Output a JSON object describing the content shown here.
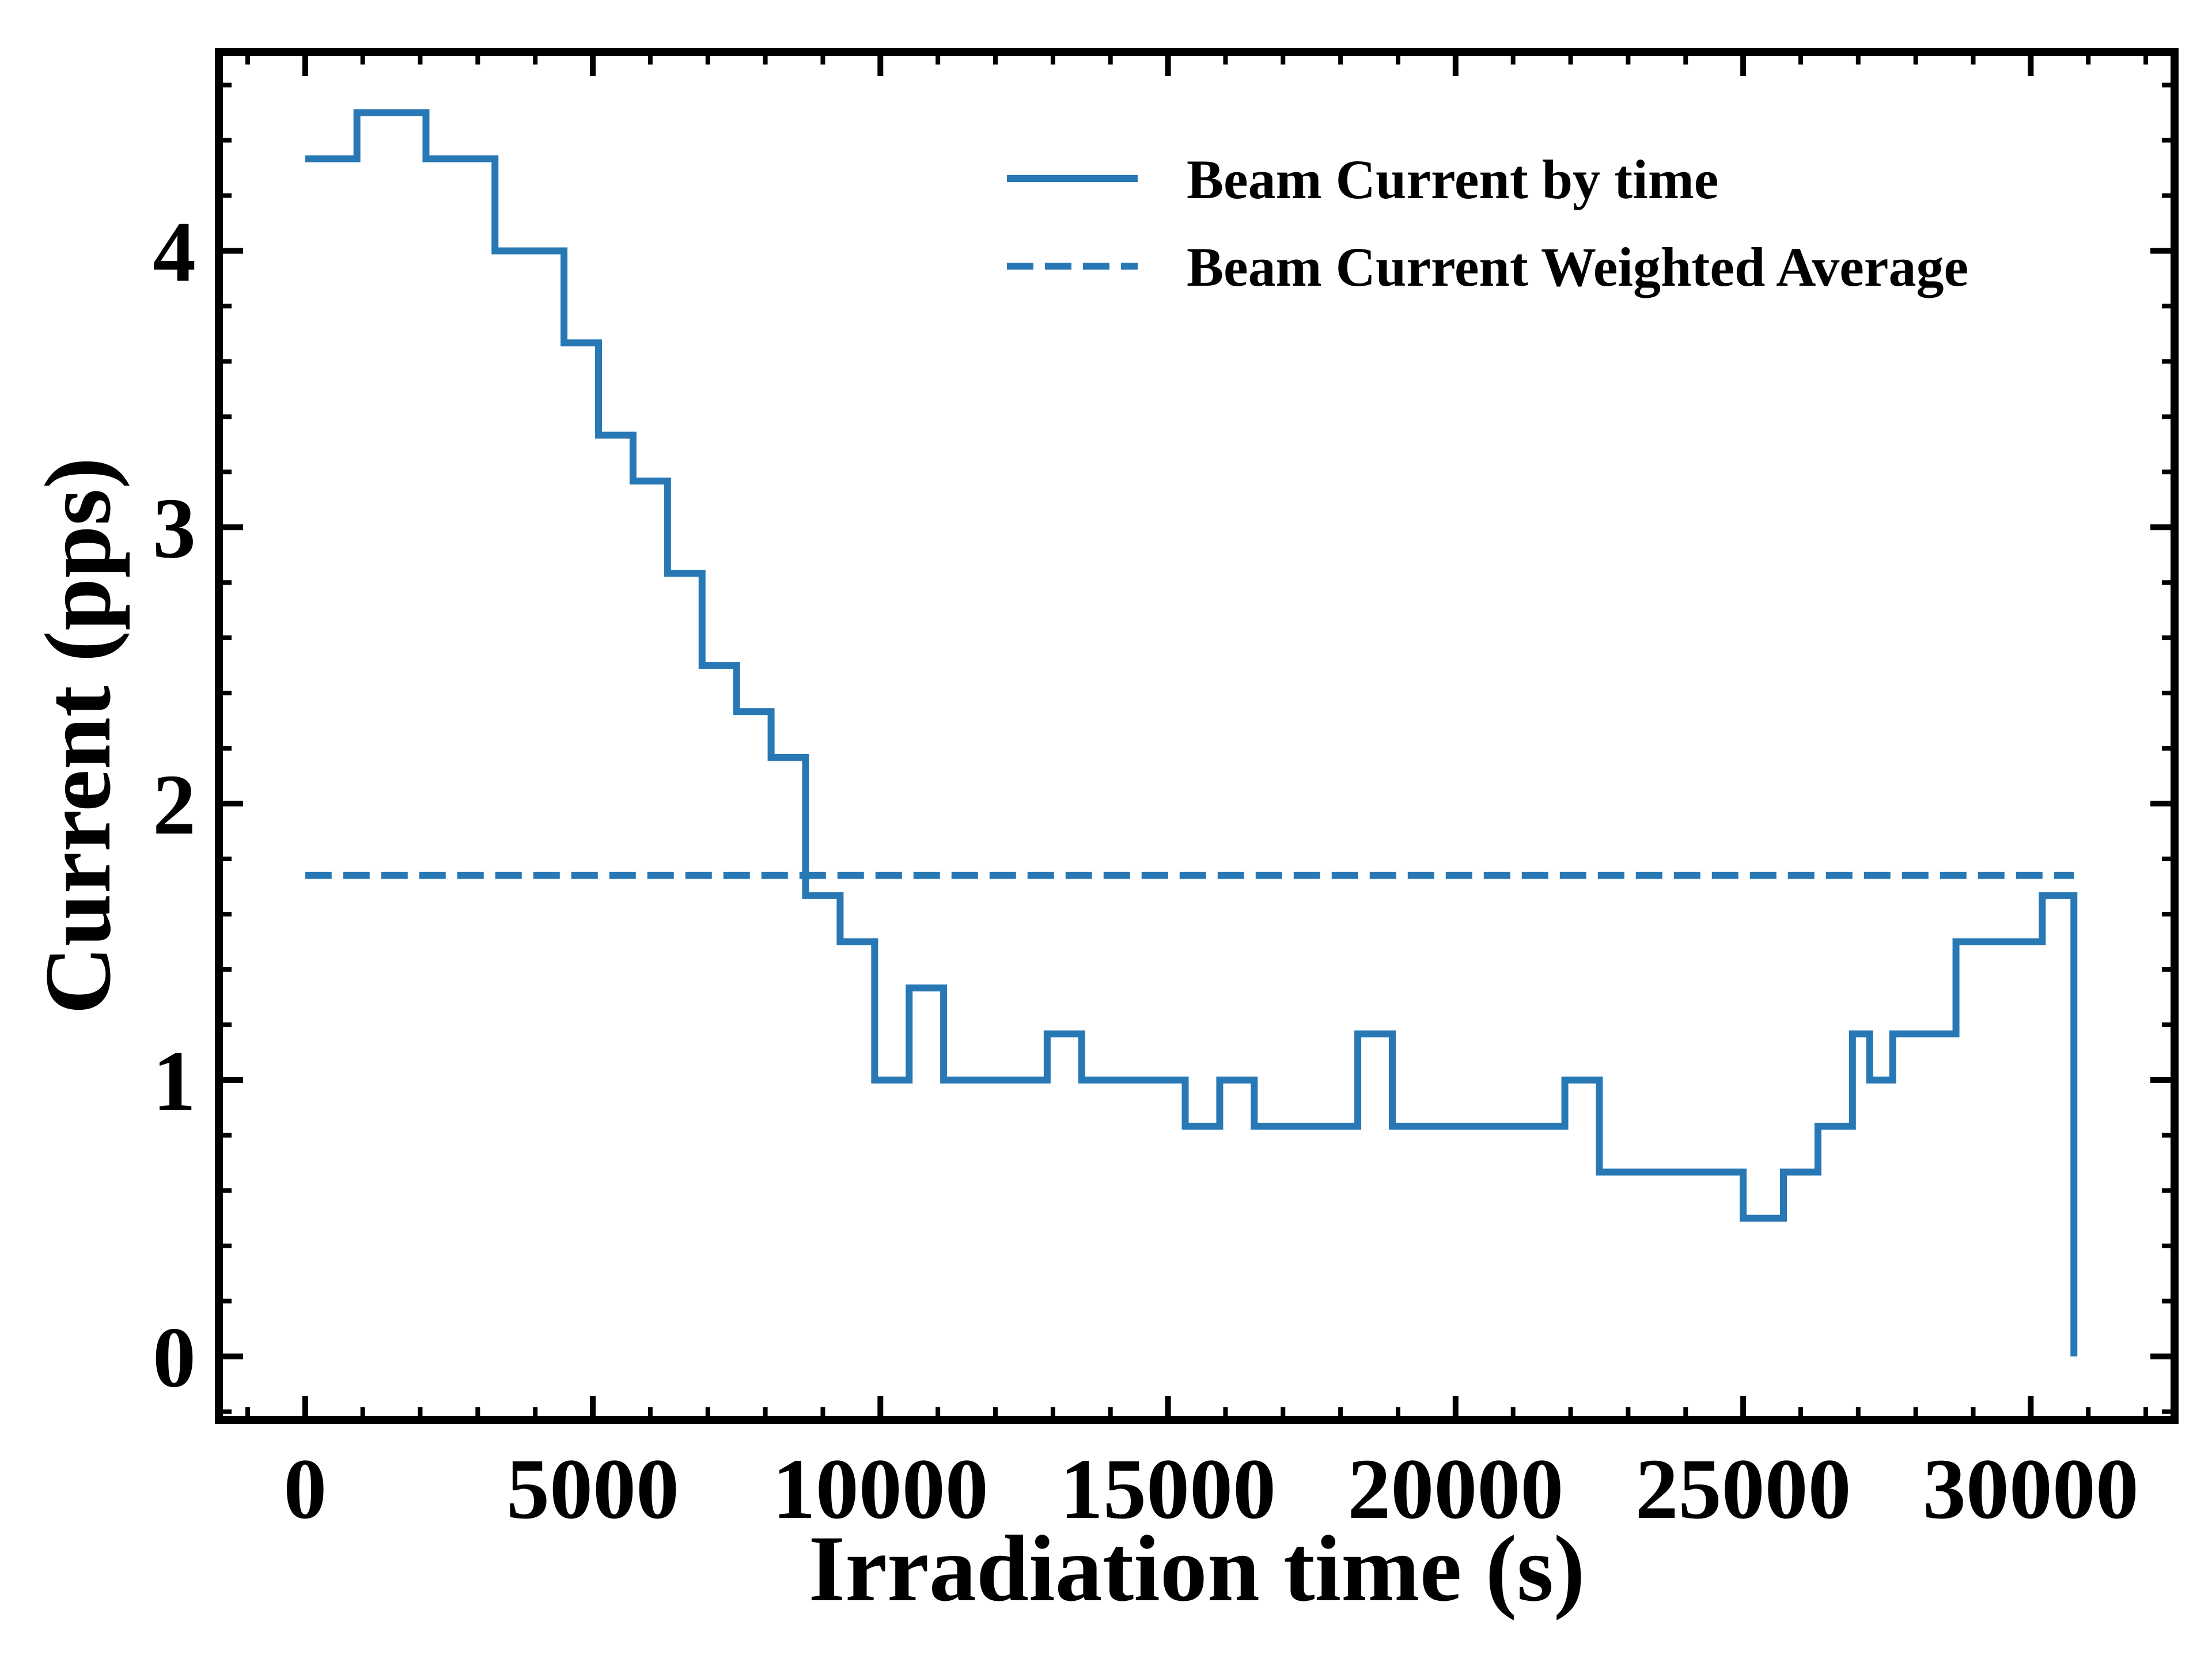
{
  "chart_data": {
    "type": "line",
    "title": "",
    "xlabel": "Irradiation time (s)",
    "ylabel": "Current (pps)",
    "xlim": [
      -1500,
      32500
    ],
    "ylim": [
      -0.23,
      4.72
    ],
    "x_ticks": [
      0,
      5000,
      10000,
      15000,
      20000,
      25000,
      30000
    ],
    "x_tick_labels": [
      "0",
      "5000",
      "10000",
      "15000",
      "20000",
      "25000",
      "30000"
    ],
    "y_ticks": [
      0,
      1,
      2,
      3,
      4
    ],
    "y_tick_labels": [
      "0",
      "1",
      "2",
      "3",
      "4"
    ],
    "grid": false,
    "legend_position": "top-right",
    "series": [
      {
        "name": "Beam Current by time",
        "style": "solid step",
        "color": "#2878b5",
        "x": [
          0,
          900,
          2100,
          3300,
          4500,
          5100,
          5700,
          6300,
          6900,
          7500,
          8100,
          8700,
          9300,
          9900,
          10500,
          11100,
          12900,
          13500,
          15300,
          15900,
          16500,
          18300,
          18900,
          21900,
          22500,
          25000,
          25700,
          26300,
          26900,
          27200,
          27600,
          28700,
          30200,
          30750
        ],
        "y": [
          4.333,
          4.5,
          4.333,
          4.0,
          3.667,
          3.333,
          3.167,
          2.833,
          2.5,
          2.333,
          2.167,
          1.667,
          1.5,
          1.0,
          1.333,
          1.0,
          1.167,
          1.0,
          0.833,
          1.0,
          0.833,
          1.167,
          0.833,
          1.0,
          0.667,
          0.5,
          0.667,
          0.833,
          1.167,
          1.0,
          1.167,
          1.5,
          1.667,
          0.0
        ]
      },
      {
        "name": "Beam Current Weighted Average",
        "style": "dashed",
        "color": "#2878b5",
        "x": [
          0,
          30750
        ],
        "y": [
          1.74,
          1.74
        ]
      }
    ]
  }
}
